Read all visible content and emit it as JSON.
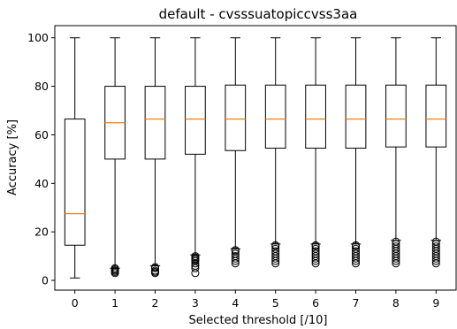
{
  "chart_data": {
    "type": "boxplot",
    "title": "default - cvsssuatopiccvss3aa",
    "xlabel": "Selected threshold  [/10]",
    "ylabel": "Accuracy [%]",
    "ylim": [
      -4,
      105
    ],
    "yticks": [
      0,
      20,
      40,
      60,
      80,
      100
    ],
    "categories": [
      "0",
      "1",
      "2",
      "3",
      "4",
      "5",
      "6",
      "7",
      "8",
      "9"
    ],
    "boxes": [
      {
        "whislo": 1,
        "q1": 14.5,
        "med": 27.5,
        "q3": 66.5,
        "whishi": 100,
        "fliers": []
      },
      {
        "whislo": 5,
        "q1": 50,
        "med": 65,
        "q3": 80,
        "whishi": 100,
        "fliers": [
          3,
          3.5,
          4,
          4.5,
          5
        ]
      },
      {
        "whislo": 6,
        "q1": 50,
        "med": 66.5,
        "q3": 80,
        "whishi": 100,
        "fliers": [
          3,
          3.5,
          4,
          5,
          5.5
        ]
      },
      {
        "whislo": 10.5,
        "q1": 52,
        "med": 66.5,
        "q3": 80,
        "whishi": 100,
        "fliers": [
          3,
          5,
          6,
          7,
          8,
          8.5,
          9,
          9.5,
          10
        ]
      },
      {
        "whislo": 13,
        "q1": 53.5,
        "med": 66.5,
        "q3": 80.5,
        "whishi": 100,
        "fliers": [
          7,
          8,
          9,
          10,
          11,
          12,
          12.5
        ]
      },
      {
        "whislo": 15,
        "q1": 54.5,
        "med": 66.5,
        "q3": 80.5,
        "whishi": 100,
        "fliers": [
          7,
          8,
          9,
          10,
          11,
          12,
          13,
          14,
          14.5
        ]
      },
      {
        "whislo": 15,
        "q1": 54.5,
        "med": 66.5,
        "q3": 80.5,
        "whishi": 100,
        "fliers": [
          7,
          8,
          9,
          10,
          11,
          12,
          13,
          14,
          14.5
        ]
      },
      {
        "whislo": 15,
        "q1": 54.5,
        "med": 66.5,
        "q3": 80.5,
        "whishi": 100,
        "fliers": [
          7,
          8,
          9,
          10,
          11,
          12,
          13,
          14,
          14.5
        ]
      },
      {
        "whislo": 16.5,
        "q1": 55,
        "med": 66.5,
        "q3": 80.5,
        "whishi": 100,
        "fliers": [
          7,
          8,
          9,
          10,
          11,
          12,
          13,
          14,
          15,
          16
        ]
      },
      {
        "whislo": 16.5,
        "q1": 55,
        "med": 66.5,
        "q3": 80.5,
        "whishi": 100,
        "fliers": [
          7,
          8,
          9,
          10,
          11,
          12,
          13,
          14,
          15,
          16
        ]
      }
    ],
    "colors": {
      "box": "#000000",
      "median": "#ff7f0e",
      "flier": "#000000"
    }
  }
}
